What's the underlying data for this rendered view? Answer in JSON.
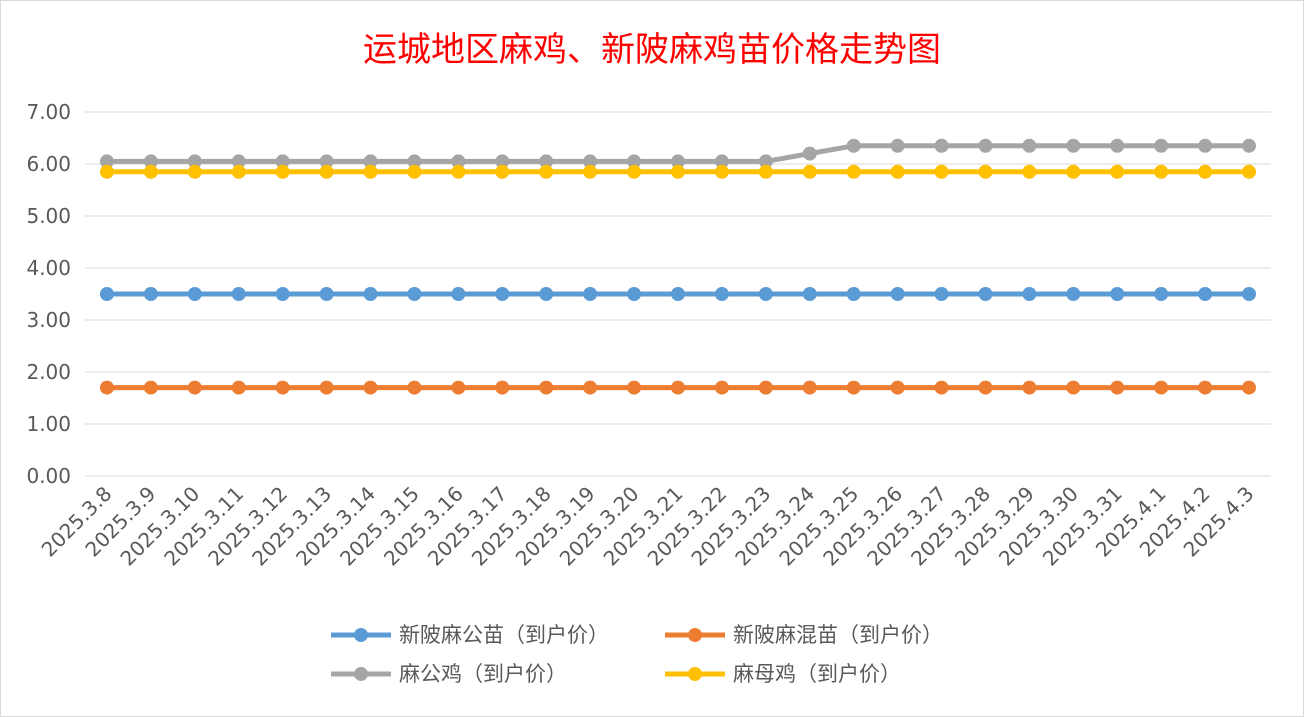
{
  "chart_data": {
    "type": "line",
    "title": "运城地区麻鸡、新陂麻鸡苗价格走势图",
    "xlabel": "",
    "ylabel": "",
    "ylim": [
      0,
      7
    ],
    "yticks": [
      "0.00",
      "1.00",
      "2.00",
      "3.00",
      "4.00",
      "5.00",
      "6.00",
      "7.00"
    ],
    "grid": true,
    "legend_position": "bottom",
    "categories": [
      "2025.3.8",
      "2025.3.9",
      "2025.3.10",
      "2025.3.11",
      "2025.3.12",
      "2025.3.13",
      "2025.3.14",
      "2025.3.15",
      "2025.3.16",
      "2025.3.17",
      "2025.3.18",
      "2025.3.19",
      "2025.3.20",
      "2025.3.21",
      "2025.3.22",
      "2025.3.23",
      "2025.3.24",
      "2025.3.25",
      "2025.3.26",
      "2025.3.27",
      "2025.3.28",
      "2025.3.29",
      "2025.3.30",
      "2025.3.31",
      "2025.4.1",
      "2025.4.2",
      "2025.4.3"
    ],
    "series": [
      {
        "name": "新陂麻公苗（到户价）",
        "color": "#5b9bd5",
        "values": [
          3.5,
          3.5,
          3.5,
          3.5,
          3.5,
          3.5,
          3.5,
          3.5,
          3.5,
          3.5,
          3.5,
          3.5,
          3.5,
          3.5,
          3.5,
          3.5,
          3.5,
          3.5,
          3.5,
          3.5,
          3.5,
          3.5,
          3.5,
          3.5,
          3.5,
          3.5,
          3.5
        ]
      },
      {
        "name": "新陂麻混苗（到户价）",
        "color": "#ed7d31",
        "values": [
          1.7,
          1.7,
          1.7,
          1.7,
          1.7,
          1.7,
          1.7,
          1.7,
          1.7,
          1.7,
          1.7,
          1.7,
          1.7,
          1.7,
          1.7,
          1.7,
          1.7,
          1.7,
          1.7,
          1.7,
          1.7,
          1.7,
          1.7,
          1.7,
          1.7,
          1.7,
          1.7
        ]
      },
      {
        "name": "麻公鸡（到户价）",
        "color": "#a5a5a5",
        "values": [
          6.05,
          6.05,
          6.05,
          6.05,
          6.05,
          6.05,
          6.05,
          6.05,
          6.05,
          6.05,
          6.05,
          6.05,
          6.05,
          6.05,
          6.05,
          6.05,
          6.2,
          6.35,
          6.35,
          6.35,
          6.35,
          6.35,
          6.35,
          6.35,
          6.35,
          6.35,
          6.35
        ]
      },
      {
        "name": "麻母鸡（到户价）",
        "color": "#ffc000",
        "values": [
          5.85,
          5.85,
          5.85,
          5.85,
          5.85,
          5.85,
          5.85,
          5.85,
          5.85,
          5.85,
          5.85,
          5.85,
          5.85,
          5.85,
          5.85,
          5.85,
          5.85,
          5.85,
          5.85,
          5.85,
          5.85,
          5.85,
          5.85,
          5.85,
          5.85,
          5.85,
          5.85
        ]
      }
    ]
  }
}
